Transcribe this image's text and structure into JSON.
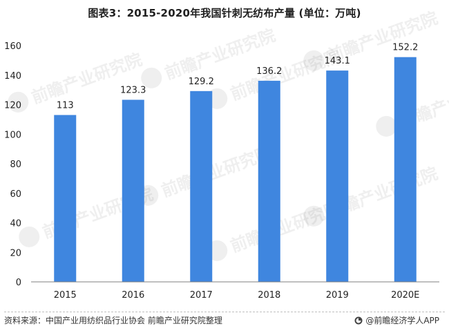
{
  "chart_data": {
    "type": "bar",
    "title": "图表3：2015-2020年我国针刺无纺布产量 (单位：万吨)",
    "categories": [
      "2015",
      "2016",
      "2017",
      "2018",
      "2019",
      "2020E"
    ],
    "values": [
      113,
      123.3,
      129.2,
      136.2,
      143.1,
      152.2
    ],
    "value_labels": [
      "113",
      "123.3",
      "129.2",
      "136.2",
      "143.1",
      "152.2"
    ],
    "ylim": [
      0,
      160
    ],
    "yticks": [
      0,
      20,
      40,
      60,
      80,
      100,
      120,
      140,
      160
    ],
    "xlabel": "",
    "ylabel": "",
    "grid": false,
    "legend": "none",
    "bar_color": "#3f86df"
  },
  "footer": {
    "source": "资料来源：中国产业用纺织品行业协会  前瞻产业研究院整理",
    "brand": "@前瞻经济学人APP"
  },
  "watermark": {
    "text": "前瞻产业研究院"
  },
  "colors": {
    "axis": "#7f7f7f",
    "text": "#222222"
  }
}
